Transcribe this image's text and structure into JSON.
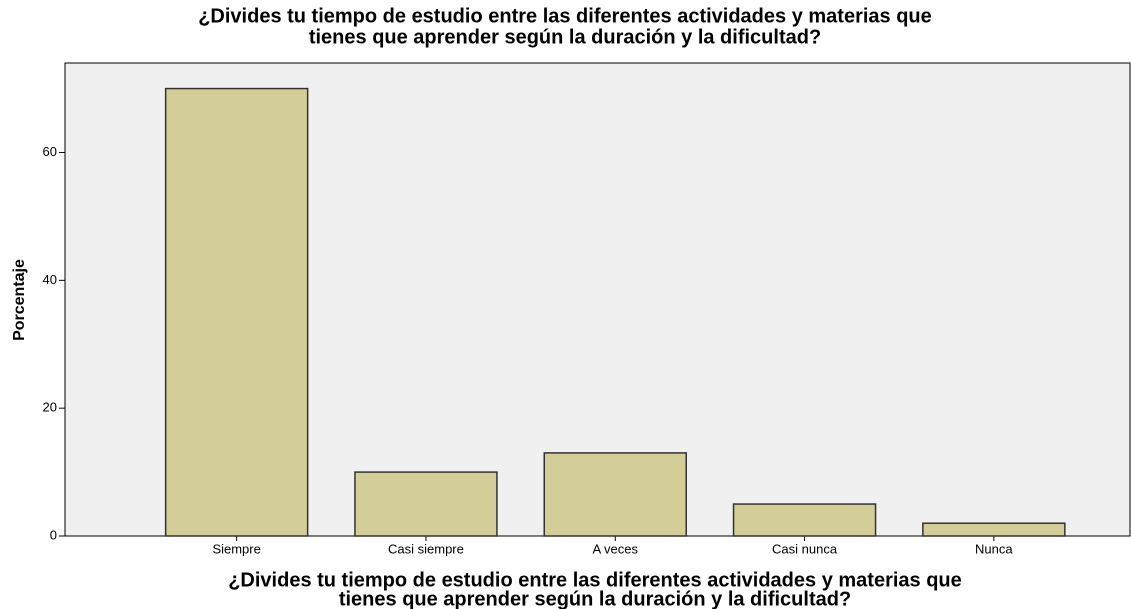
{
  "chart_data": {
    "type": "bar",
    "title": [
      "¿Divides tu tiempo de estudio entre las diferentes actividades y materias que",
      "tienes que aprender según la duración y la dificultad?"
    ],
    "x_label": [
      "¿Divides tu tiempo de estudio entre las diferentes actividades y materias que",
      "tienes que aprender según la duración y la dificultad?"
    ],
    "y_label": "Porcentaje",
    "categories": [
      "Siempre",
      "Casi siempre",
      "A veces",
      "Casi nunca",
      "Nunca"
    ],
    "values": [
      70,
      10,
      13,
      5,
      2
    ],
    "color": "#d3ce97",
    "ylim": [
      0,
      74
    ],
    "yticks": [
      0,
      20,
      40,
      60
    ],
    "grid": false
  }
}
